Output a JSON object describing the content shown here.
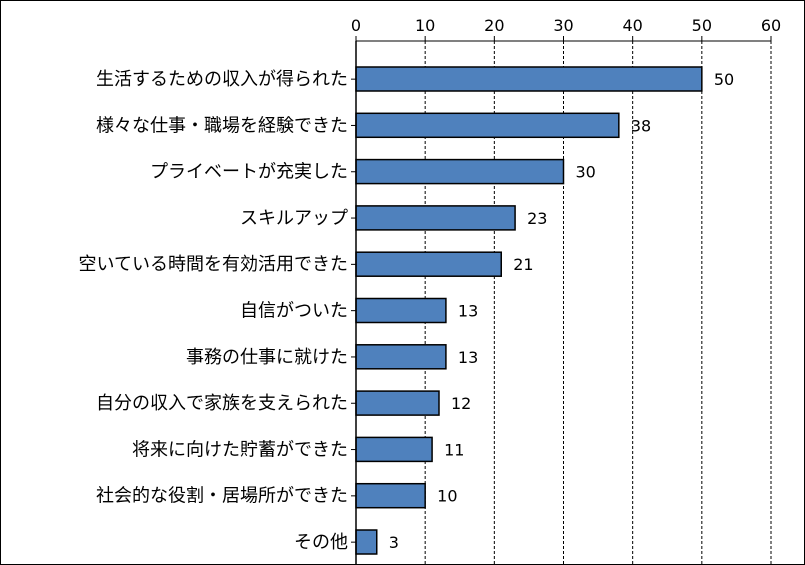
{
  "chart_data": {
    "type": "bar",
    "orientation": "horizontal",
    "categories": [
      "生活するための収入が得られた",
      "様々な仕事・職場を経験できた",
      "プライベートが充実した",
      "スキルアップ",
      "空いている時間を有効活用できた",
      "自信がついた",
      "事務の仕事に就けた",
      "自分の収入で家族を支えられた",
      "将来に向けた貯蓄ができた",
      "社会的な役割・居場所ができた",
      "その他"
    ],
    "values": [
      50,
      38,
      30,
      23,
      21,
      13,
      13,
      12,
      11,
      10,
      3
    ],
    "data_labels": [
      "50",
      "38",
      "30",
      "23",
      "21",
      "13",
      "13",
      "12",
      "11",
      "10",
      "3"
    ],
    "xlim": [
      0,
      60
    ],
    "xticks": [
      0,
      10,
      20,
      30,
      40,
      50,
      60
    ],
    "xtick_labels": [
      "0",
      "10",
      "20",
      "30",
      "40",
      "50",
      "60"
    ],
    "x_axis_position": "top",
    "grid": "vertical dashed",
    "legend": "none",
    "title": "",
    "xlabel": "",
    "ylabel": "",
    "colors": {
      "bar_fill": "#4f81bd",
      "bar_stroke": "#000000",
      "grid": "#000000",
      "text": "#000000"
    }
  }
}
